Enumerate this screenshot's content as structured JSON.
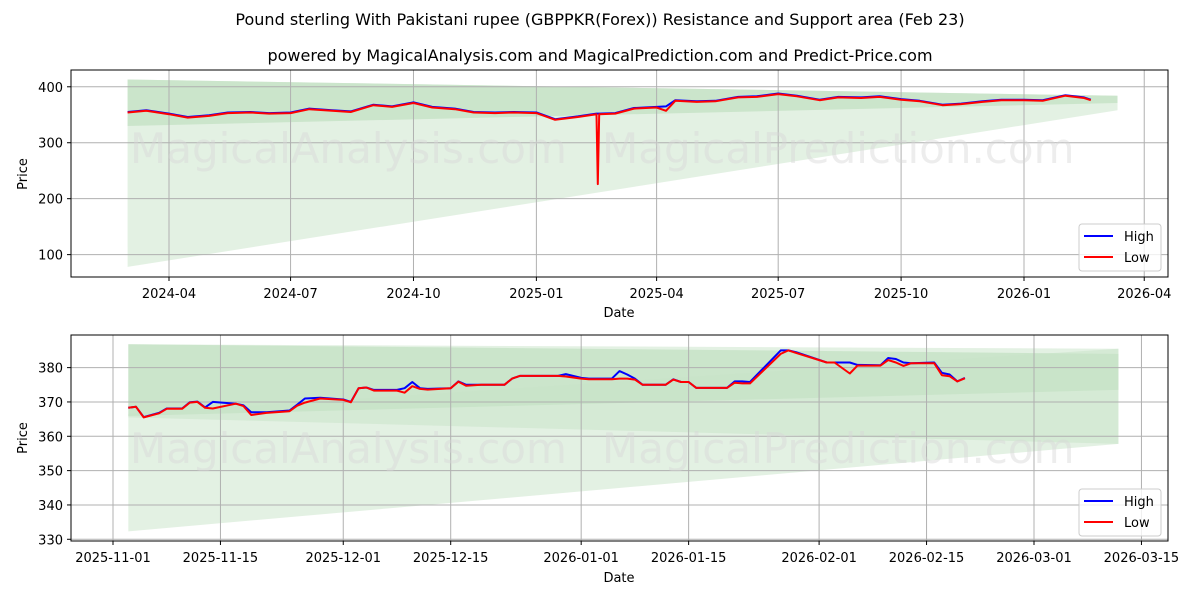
{
  "header": {
    "title": "Pound sterling With Pakistani rupee (GBPPKR(Forex)) Resistance and Support area (Feb 23)",
    "subtitle": "powered by MagicalAnalysis.com and MagicalPrediction.com and Predict-Price.com"
  },
  "watermarks": [
    "MagicalAnalysis.com",
    "MagicalPrediction.com"
  ],
  "colors": {
    "high": "#0000ff",
    "low": "#ff0000",
    "band_dark": "#b3d9b3",
    "band_light": "#d9ecd9",
    "grid": "#b0b0b0"
  },
  "chart_data": [
    {
      "type": "line",
      "title": "Pound sterling With Pakistani rupee (GBPPKR(Forex)) Resistance and Support area (Feb 23)",
      "xlabel": "Date",
      "ylabel": "Price",
      "ylim": [
        60,
        430
      ],
      "xticks": [
        "2024-04",
        "2024-07",
        "2024-10",
        "2025-01",
        "2025-04",
        "2025-07",
        "2025-10",
        "2026-01",
        "2026-04"
      ],
      "yticks": [
        100,
        200,
        300,
        400
      ],
      "grid": true,
      "legend": {
        "position": "lower right",
        "entries": [
          "High",
          "Low"
        ]
      },
      "bands": [
        {
          "name": "resistance",
          "x_start": "2024-03-01",
          "x_end": "2026-03-12",
          "upper_start": 413,
          "upper_end": 384,
          "lower_start": 330,
          "lower_end": 371
        },
        {
          "name": "support",
          "x_start": "2024-03-01",
          "x_end": "2026-03-12",
          "upper_start": 413,
          "upper_end": 384,
          "lower_start": 78,
          "lower_end": 358
        }
      ],
      "x": [
        "2024-03-01",
        "2024-03-15",
        "2024-04-01",
        "2024-04-15",
        "2024-05-01",
        "2024-05-15",
        "2024-06-01",
        "2024-06-15",
        "2024-07-01",
        "2024-07-15",
        "2024-08-01",
        "2024-08-15",
        "2024-09-01",
        "2024-09-15",
        "2024-10-01",
        "2024-10-15",
        "2024-11-01",
        "2024-11-15",
        "2024-12-01",
        "2024-12-15",
        "2025-01-01",
        "2025-01-15",
        "2025-02-01",
        "2025-02-15",
        "2025-02-16",
        "2025-02-17",
        "2025-03-01",
        "2025-03-15",
        "2025-04-01",
        "2025-04-08",
        "2025-04-15",
        "2025-05-01",
        "2025-05-15",
        "2025-06-01",
        "2025-06-15",
        "2025-07-01",
        "2025-07-15",
        "2025-08-01",
        "2025-08-15",
        "2025-09-01",
        "2025-09-15",
        "2025-10-01",
        "2025-10-15",
        "2025-11-01",
        "2025-11-15",
        "2025-12-01",
        "2025-12-15",
        "2026-01-01",
        "2026-01-15",
        "2026-02-01",
        "2026-02-15",
        "2026-02-20"
      ],
      "series": [
        {
          "name": "High",
          "values": [
            355,
            358,
            352,
            346,
            349,
            354,
            355,
            353,
            354,
            361,
            358,
            356,
            368,
            365,
            372,
            364,
            361,
            355,
            354,
            355,
            354,
            342,
            347,
            352,
            352,
            352,
            353,
            362,
            364,
            365,
            376,
            374,
            375,
            382,
            383,
            388,
            384,
            377,
            382,
            381,
            383,
            378,
            375,
            368,
            370,
            374,
            377,
            377,
            376,
            385,
            381,
            377
          ]
        },
        {
          "name": "Low",
          "values": [
            354,
            357,
            351,
            345,
            348,
            353,
            354,
            352,
            353,
            360,
            357,
            355,
            367,
            364,
            371,
            363,
            360,
            354,
            353,
            354,
            353,
            341,
            346,
            351,
            226,
            351,
            352,
            361,
            363,
            357,
            375,
            373,
            374,
            381,
            382,
            387,
            383,
            376,
            381,
            380,
            382,
            377,
            374,
            367,
            369,
            373,
            376,
            376,
            375,
            384,
            380,
            376
          ]
        }
      ]
    },
    {
      "type": "line",
      "xlabel": "Date",
      "ylabel": "Price",
      "ylim": [
        329.5,
        389.5
      ],
      "xticks": [
        "2025-11-01",
        "2025-11-15",
        "2025-12-01",
        "2025-12-15",
        "2026-01-01",
        "2026-01-15",
        "2026-02-01",
        "2026-02-15",
        "2026-03-01",
        "2026-03-15"
      ],
      "yticks": [
        330,
        340,
        350,
        360,
        370,
        380
      ],
      "grid": true,
      "legend": {
        "position": "lower right",
        "entries": [
          "High",
          "Low"
        ]
      },
      "bands": [
        {
          "name": "resistance",
          "x_start": "2025-11-03",
          "x_end": "2026-03-12",
          "upper_start": 386.8,
          "upper_end": 384.0,
          "lower_start": 365.9,
          "lower_end": 373.5
        },
        {
          "name": "support",
          "x_start": "2025-11-03",
          "x_end": "2026-03-12",
          "upper_start": 386.8,
          "upper_end": 385.5,
          "lower_start": 332.3,
          "lower_end": 357.8
        },
        {
          "name": "mid",
          "x_start": "2025-11-03",
          "x_end": "2026-03-12",
          "upper_start": 366.5,
          "upper_end": 385.5,
          "lower_start": 365.5,
          "lower_end": 357.8
        }
      ],
      "x": [
        "2025-11-03",
        "2025-11-04",
        "2025-11-05",
        "2025-11-07",
        "2025-11-08",
        "2025-11-10",
        "2025-11-11",
        "2025-11-12",
        "2025-11-13",
        "2025-11-14",
        "2025-11-17",
        "2025-11-18",
        "2025-11-19",
        "2025-11-21",
        "2025-11-24",
        "2025-11-25",
        "2025-11-26",
        "2025-11-28",
        "2025-12-01",
        "2025-12-02",
        "2025-12-03",
        "2025-12-04",
        "2025-12-05",
        "2025-12-08",
        "2025-12-09",
        "2025-12-10",
        "2025-12-11",
        "2025-12-12",
        "2025-12-15",
        "2025-12-16",
        "2025-12-17",
        "2025-12-19",
        "2025-12-22",
        "2025-12-23",
        "2025-12-24",
        "2025-12-29",
        "2025-12-30",
        "2026-01-01",
        "2026-01-02",
        "2026-01-05",
        "2026-01-06",
        "2026-01-07",
        "2026-01-08",
        "2026-01-09",
        "2026-01-12",
        "2026-01-13",
        "2026-01-14",
        "2026-01-15",
        "2026-01-16",
        "2026-01-20",
        "2026-01-21",
        "2026-01-22",
        "2026-01-23",
        "2026-01-27",
        "2026-01-28",
        "2026-01-29",
        "2026-02-02",
        "2026-02-03",
        "2026-02-05",
        "2026-02-06",
        "2026-02-09",
        "2026-02-10",
        "2026-02-11",
        "2026-02-12",
        "2026-02-13",
        "2026-02-16",
        "2026-02-17",
        "2026-02-18",
        "2026-02-19",
        "2026-02-20"
      ],
      "series": [
        {
          "name": "High",
          "values": [
            368.3,
            368.6,
            365.6,
            366.8,
            368.1,
            368.1,
            369.9,
            370.1,
            368.4,
            370.0,
            369.5,
            369.0,
            367.0,
            367.0,
            367.5,
            369.2,
            371.0,
            371.2,
            370.7,
            370.0,
            374.0,
            374.2,
            373.5,
            373.5,
            374.0,
            375.8,
            374.0,
            373.8,
            374.0,
            376.0,
            375.0,
            375.0,
            375.0,
            376.8,
            377.6,
            377.6,
            378.1,
            377.0,
            376.8,
            376.8,
            379.0,
            378.0,
            376.8,
            375.0,
            375.0,
            376.6,
            375.8,
            375.8,
            374.1,
            374.1,
            376.0,
            376.0,
            375.8,
            385.0,
            385.0,
            384.5,
            381.5,
            381.5,
            381.5,
            380.8,
            380.7,
            382.8,
            382.5,
            381.5,
            381.3,
            381.5,
            378.5,
            378.0,
            376.0,
            377.0
          ]
        },
        {
          "name": "Low",
          "values": [
            368.3,
            368.6,
            365.5,
            366.7,
            368.0,
            368.0,
            369.8,
            370.0,
            368.3,
            368.1,
            369.5,
            368.8,
            366.2,
            366.8,
            367.3,
            368.9,
            369.8,
            371.0,
            370.6,
            369.9,
            374.0,
            374.2,
            373.3,
            373.3,
            372.7,
            374.6,
            373.8,
            373.6,
            374.0,
            375.9,
            374.7,
            375.0,
            375.0,
            376.8,
            377.6,
            377.6,
            377.4,
            376.8,
            376.6,
            376.6,
            376.8,
            376.8,
            376.5,
            375.0,
            375.0,
            376.5,
            375.8,
            375.8,
            374.1,
            374.1,
            375.6,
            375.4,
            375.4,
            384.0,
            385.0,
            384.3,
            381.5,
            381.5,
            378.3,
            380.6,
            380.6,
            382.2,
            381.5,
            380.5,
            381.3,
            381.3,
            377.8,
            377.5,
            376.0,
            376.9
          ]
        }
      ]
    }
  ]
}
